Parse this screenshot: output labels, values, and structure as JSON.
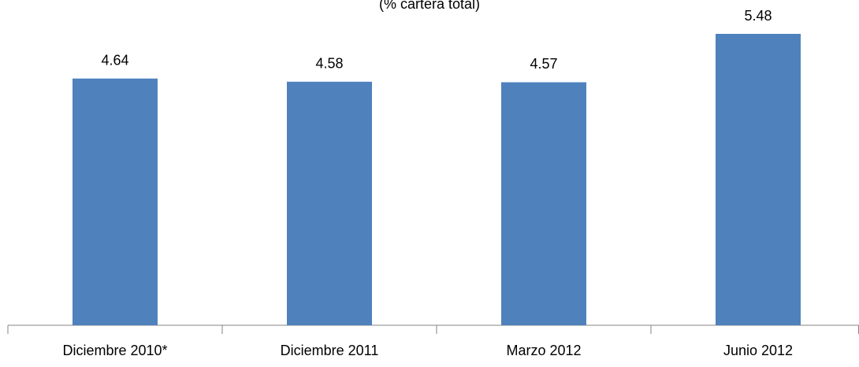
{
  "chart_data": {
    "type": "bar",
    "subtitle": "(% cartera total)",
    "categories": [
      "Diciembre 2010*",
      "Diciembre 2011",
      "Marzo 2012",
      "Junio 2012"
    ],
    "values": [
      4.64,
      4.58,
      4.57,
      5.48
    ],
    "color": "#4f81bd"
  }
}
